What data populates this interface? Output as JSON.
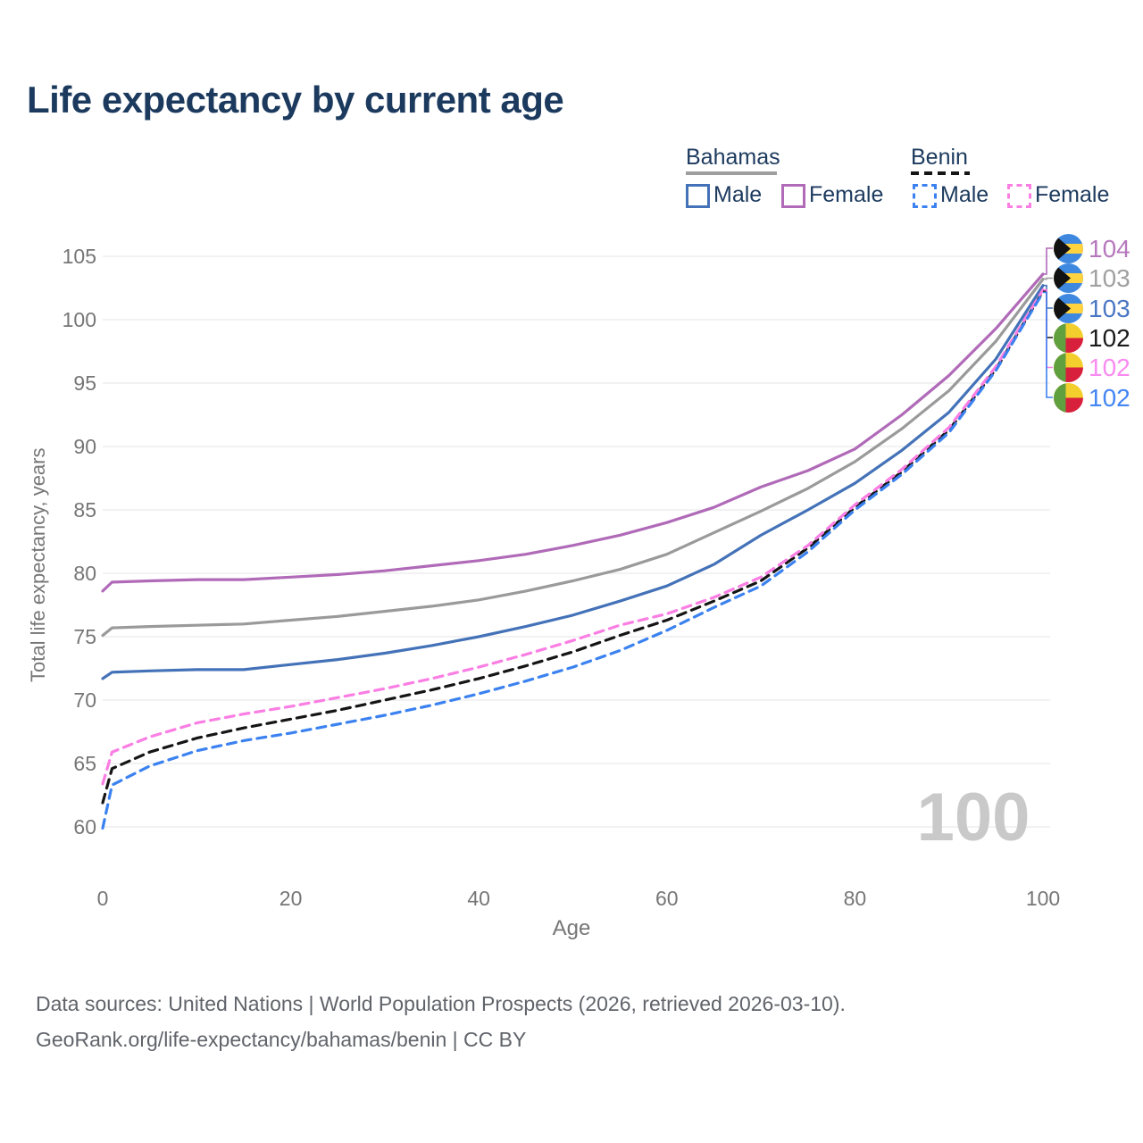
{
  "title": "Life expectancy by current age",
  "watermark": "100",
  "colors": {
    "bahamas_male": "#4472b8",
    "bahamas_female": "#b06ab8",
    "bahamas_total": "#9a9a9a",
    "benin_male": "#3b82f0",
    "benin_female": "#fa7ee3",
    "benin_total": "#151515",
    "grid": "#ebebeb",
    "title_text": "#1c3a5e",
    "axis_text": "#767676",
    "watermark_text": "#c9c9c9",
    "footer_text": "#60646a"
  },
  "legend": {
    "groups": [
      {
        "name": "Bahamas",
        "line_style": "solid",
        "underline_color": "#9e9e9e",
        "items": [
          {
            "label": "Male",
            "color": "#4472b8",
            "dash": "solid"
          },
          {
            "label": "Female",
            "color": "#b06ab8",
            "dash": "solid"
          }
        ]
      },
      {
        "name": "Benin",
        "line_style": "dashed",
        "underline_color": "#151515",
        "items": [
          {
            "label": "Male",
            "color": "#3b82f0",
            "dash": "dashed"
          },
          {
            "label": "Female",
            "color": "#fa7ee3",
            "dash": "dashed"
          }
        ]
      }
    ]
  },
  "footer": {
    "line1": "Data sources: United Nations | World Population Prospects (2026, retrieved 2026-03-10).",
    "line2": "GeoRank.org/life-expectancy/bahamas/benin | CC BY"
  },
  "chart_data": {
    "type": "line",
    "title": "Life expectancy by current age",
    "xlabel": "Age",
    "ylabel": "Total life expectancy, years",
    "xlim": [
      0,
      100
    ],
    "ylim": [
      60,
      105
    ],
    "x_ticks": [
      0,
      20,
      40,
      60,
      80,
      100
    ],
    "y_ticks": [
      60,
      65,
      70,
      75,
      80,
      85,
      90,
      95,
      100,
      105
    ],
    "grid": "horizontal",
    "legend_position": "top-right",
    "ages": [
      0,
      1,
      5,
      10,
      15,
      20,
      25,
      30,
      35,
      40,
      45,
      50,
      55,
      60,
      65,
      70,
      75,
      80,
      85,
      90,
      95,
      100
    ],
    "series": [
      {
        "name": "Bahamas Female",
        "country": "Bahamas",
        "sex": "Female",
        "color": "#b06ab8",
        "dash": "solid",
        "end_label": "104",
        "label_color": "#b678bc",
        "flag": "bahamas",
        "values": [
          78.6,
          79.3,
          79.4,
          79.5,
          79.5,
          79.7,
          79.9,
          80.2,
          80.6,
          81.0,
          81.5,
          82.2,
          83.0,
          84.0,
          85.2,
          86.8,
          88.1,
          89.8,
          92.5,
          95.6,
          99.3,
          103.6
        ]
      },
      {
        "name": "Bahamas Total",
        "country": "Bahamas",
        "sex": "Both",
        "color": "#9a9a9a",
        "dash": "solid",
        "end_label": "103",
        "label_color": "#a0a0a0",
        "flag": "bahamas",
        "values": [
          75.1,
          75.7,
          75.8,
          75.9,
          76.0,
          76.3,
          76.6,
          77.0,
          77.4,
          77.9,
          78.6,
          79.4,
          80.3,
          81.5,
          83.2,
          84.9,
          86.7,
          88.8,
          91.4,
          94.4,
          98.3,
          103.2
        ]
      },
      {
        "name": "Bahamas Male",
        "country": "Bahamas",
        "sex": "Male",
        "color": "#4472b8",
        "dash": "solid",
        "end_label": "103",
        "label_color": "#4a77c4",
        "flag": "bahamas",
        "values": [
          71.7,
          72.2,
          72.3,
          72.4,
          72.4,
          72.8,
          73.2,
          73.7,
          74.3,
          75.0,
          75.8,
          76.7,
          77.8,
          79.0,
          80.7,
          83.0,
          85.0,
          87.1,
          89.7,
          92.7,
          96.9,
          102.7
        ]
      },
      {
        "name": "Benin Total",
        "country": "Benin",
        "sex": "Both",
        "color": "#151515",
        "dash": "dashed",
        "end_label": "102",
        "label_color": "#1a1a1a",
        "flag": "benin",
        "values": [
          61.9,
          64.6,
          65.9,
          67.0,
          67.8,
          68.5,
          69.2,
          70.0,
          70.8,
          71.7,
          72.7,
          73.8,
          75.1,
          76.3,
          77.8,
          79.4,
          82.0,
          85.2,
          88.0,
          91.3,
          96.1,
          102.25
        ]
      },
      {
        "name": "Benin Female",
        "country": "Benin",
        "sex": "Female",
        "color": "#fa7ee3",
        "dash": "dashed",
        "end_label": "102",
        "label_color": "#f98af0",
        "flag": "benin",
        "values": [
          63.4,
          65.9,
          67.1,
          68.2,
          68.9,
          69.5,
          70.2,
          70.9,
          71.7,
          72.6,
          73.6,
          74.7,
          75.9,
          76.8,
          78.1,
          79.7,
          82.2,
          85.4,
          88.2,
          91.5,
          96.3,
          102.35
        ]
      },
      {
        "name": "Benin Male",
        "country": "Benin",
        "sex": "Male",
        "color": "#3b82f0",
        "dash": "dashed",
        "end_label": "102",
        "label_color": "#4285f4",
        "flag": "benin",
        "values": [
          59.9,
          63.3,
          64.8,
          66.0,
          66.8,
          67.4,
          68.1,
          68.8,
          69.6,
          70.5,
          71.5,
          72.6,
          73.9,
          75.5,
          77.3,
          79.0,
          81.7,
          85.0,
          87.8,
          91.1,
          96.0,
          102.15
        ]
      }
    ]
  }
}
